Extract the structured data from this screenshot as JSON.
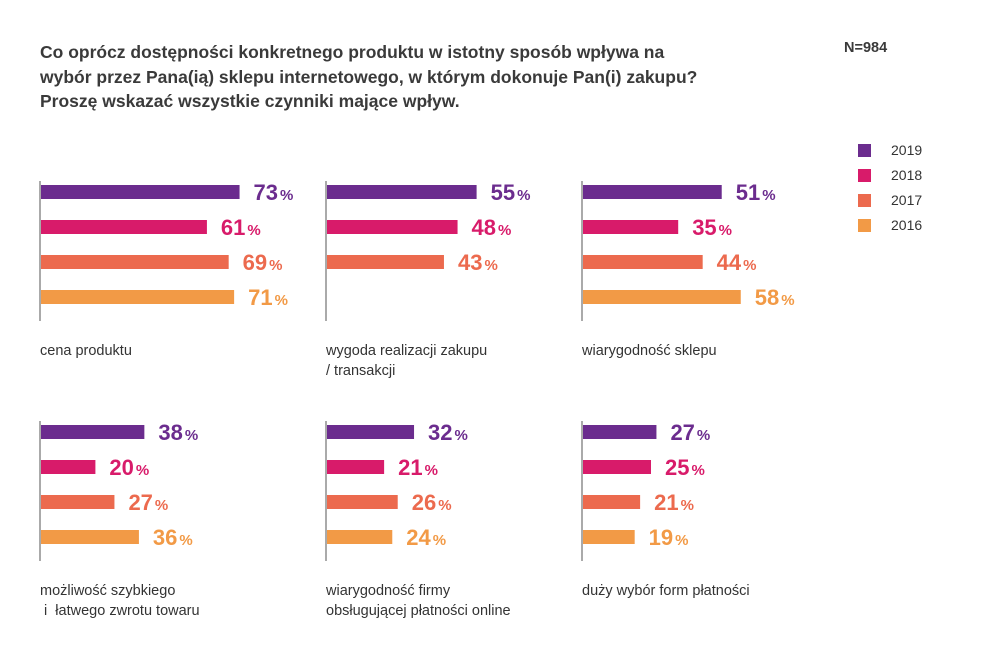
{
  "title_lines": [
    "Co oprócz dostępności konkretnego produktu w istotny sposób wpływa na",
    "wybór przez Pana(ią) sklepu internetowego, w którym dokonuje Pan(i) zakupu?",
    "Proszę wskazać wszystkie czynniki mające wpływ."
  ],
  "sample_size": "N=984",
  "colors": {
    "2019": "#6b2c8e",
    "2018": "#d81b6a",
    "2017": "#ec6a4e",
    "2016": "#f29a46",
    "axis": "#555555"
  },
  "legend": [
    {
      "label": "2019",
      "color": "#6b2c8e"
    },
    {
      "label": "2018",
      "color": "#d81b6a"
    },
    {
      "label": "2017",
      "color": "#ec6a4e"
    },
    {
      "label": "2016",
      "color": "#f29a46"
    }
  ],
  "chart_data": [
    {
      "type": "bar",
      "orientation": "horizontal",
      "category": "cena produktu",
      "series": [
        {
          "name": "2019",
          "value": 73
        },
        {
          "name": "2018",
          "value": 61
        },
        {
          "name": "2017",
          "value": 69
        },
        {
          "name": "2016",
          "value": 71
        }
      ],
      "unit": "%"
    },
    {
      "type": "bar",
      "orientation": "horizontal",
      "category": "wygoda realizacji zakupu\n/ transakcji",
      "series": [
        {
          "name": "2019",
          "value": 55
        },
        {
          "name": "2018",
          "value": 48
        },
        {
          "name": "2017",
          "value": 43
        },
        {
          "name": "2016",
          "value": null
        }
      ],
      "unit": "%"
    },
    {
      "type": "bar",
      "orientation": "horizontal",
      "category": "wiarygodność sklepu",
      "series": [
        {
          "name": "2019",
          "value": 51
        },
        {
          "name": "2018",
          "value": 35
        },
        {
          "name": "2017",
          "value": 44
        },
        {
          "name": "2016",
          "value": 58
        }
      ],
      "unit": "%"
    },
    {
      "type": "bar",
      "orientation": "horizontal",
      "category": "możliwość szybkiego\n i  łatwego zwrotu towaru",
      "series": [
        {
          "name": "2019",
          "value": 38
        },
        {
          "name": "2018",
          "value": 20
        },
        {
          "name": "2017",
          "value": 27
        },
        {
          "name": "2016",
          "value": 36
        }
      ],
      "unit": "%"
    },
    {
      "type": "bar",
      "orientation": "horizontal",
      "category": "wiarygodność firmy\nobsługującej płatności online",
      "series": [
        {
          "name": "2019",
          "value": 32
        },
        {
          "name": "2018",
          "value": 21
        },
        {
          "name": "2017",
          "value": 26
        },
        {
          "name": "2016",
          "value": 24
        }
      ],
      "unit": "%"
    },
    {
      "type": "bar",
      "orientation": "horizontal",
      "category": "duży wybór form płatności",
      "series": [
        {
          "name": "2019",
          "value": 27
        },
        {
          "name": "2018",
          "value": 25
        },
        {
          "name": "2017",
          "value": 21
        },
        {
          "name": "2016",
          "value": 19
        }
      ],
      "unit": "%"
    }
  ]
}
